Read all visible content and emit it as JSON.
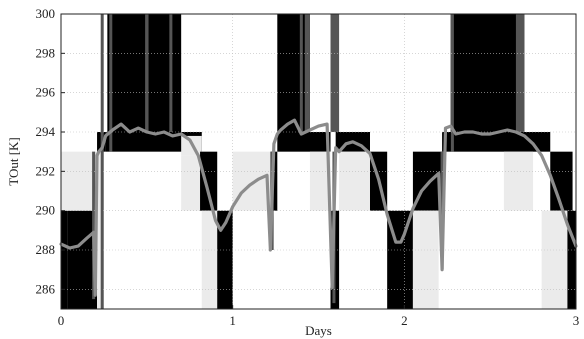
{
  "chart_data": {
    "type": "line",
    "title": "",
    "xlabel": "Days",
    "ylabel": "TOut [K]",
    "xlim": [
      0,
      3
    ],
    "ylim": [
      285,
      300
    ],
    "grid": true,
    "x_ticks": [
      0,
      1,
      2,
      3
    ],
    "x_tick_labels": [
      "0",
      "1",
      "2",
      "3"
    ],
    "y_ticks": [
      286,
      288,
      290,
      292,
      294,
      296,
      298,
      300
    ],
    "y_tick_labels": [
      "286",
      "288",
      "290",
      "292",
      "294",
      "296",
      "298",
      "300"
    ],
    "band_colors": {
      "black": "#000000",
      "dark": "#555555",
      "light": "#ebebeb",
      "white": "#ffffff"
    },
    "line_color": "#8c8c8c",
    "bands": [
      {
        "x0": 0.0,
        "x1": 0.04,
        "y0": 285,
        "y1": 290,
        "color": "black"
      },
      {
        "x0": 0.04,
        "x1": 0.21,
        "y0": 285,
        "y1": 290,
        "color": "black"
      },
      {
        "x0": 0.0,
        "x1": 0.21,
        "y0": 290,
        "y1": 293,
        "color": "light"
      },
      {
        "x0": 0.21,
        "x1": 0.25,
        "y0": 285,
        "y1": 293,
        "color": "light"
      },
      {
        "x0": 0.21,
        "x1": 0.26,
        "y0": 293,
        "y1": 294,
        "color": "black"
      },
      {
        "x0": 0.26,
        "x1": 0.82,
        "y0": 293,
        "y1": 294,
        "color": "black"
      },
      {
        "x0": 0.27,
        "x1": 0.7,
        "y0": 294,
        "y1": 300,
        "color": "black"
      },
      {
        "x0": 0.49,
        "x1": 0.51,
        "y0": 294,
        "y1": 300,
        "color": "dark"
      },
      {
        "x0": 0.7,
        "x1": 0.82,
        "y0": 292.8,
        "y1": 293.8,
        "color": "light"
      },
      {
        "x0": 0.7,
        "x1": 0.81,
        "y0": 290,
        "y1": 292.8,
        "color": "light"
      },
      {
        "x0": 0.81,
        "x1": 0.91,
        "y0": 290,
        "y1": 293,
        "color": "black"
      },
      {
        "x0": 0.82,
        "x1": 0.91,
        "y0": 285,
        "y1": 290,
        "color": "light"
      },
      {
        "x0": 0.91,
        "x1": 1.0,
        "y0": 285,
        "y1": 290,
        "color": "black"
      },
      {
        "x0": 1.0,
        "x1": 1.22,
        "y0": 290,
        "y1": 293,
        "color": "light"
      },
      {
        "x0": 1.22,
        "x1": 1.26,
        "y0": 290,
        "y1": 293,
        "color": "black"
      },
      {
        "x0": 1.26,
        "x1": 1.57,
        "y0": 293,
        "y1": 294,
        "color": "black"
      },
      {
        "x0": 1.26,
        "x1": 1.45,
        "y0": 294,
        "y1": 300,
        "color": "black"
      },
      {
        "x0": 1.42,
        "x1": 1.45,
        "y0": 294,
        "y1": 300,
        "color": "dark"
      },
      {
        "x0": 1.57,
        "x1": 1.62,
        "y0": 294,
        "y1": 300,
        "color": "dark"
      },
      {
        "x0": 1.45,
        "x1": 1.57,
        "y0": 290,
        "y1": 293,
        "color": "light"
      },
      {
        "x0": 1.57,
        "x1": 1.62,
        "y0": 285,
        "y1": 290,
        "color": "black"
      },
      {
        "x0": 1.6,
        "x1": 1.8,
        "y0": 293,
        "y1": 294,
        "color": "black"
      },
      {
        "x0": 1.62,
        "x1": 1.8,
        "y0": 290,
        "y1": 293,
        "color": "light"
      },
      {
        "x0": 1.8,
        "x1": 1.9,
        "y0": 290,
        "y1": 293,
        "color": "black"
      },
      {
        "x0": 1.9,
        "x1": 2.05,
        "y0": 285,
        "y1": 290,
        "color": "black"
      },
      {
        "x0": 2.05,
        "x1": 2.22,
        "y0": 290,
        "y1": 293,
        "color": "black"
      },
      {
        "x0": 2.05,
        "x1": 2.2,
        "y0": 285,
        "y1": 290,
        "color": "light"
      },
      {
        "x0": 2.22,
        "x1": 2.85,
        "y0": 293,
        "y1": 294,
        "color": "black"
      },
      {
        "x0": 2.27,
        "x1": 2.7,
        "y0": 294,
        "y1": 300,
        "color": "black"
      },
      {
        "x0": 2.65,
        "x1": 2.7,
        "y0": 294,
        "y1": 300,
        "color": "dark"
      },
      {
        "x0": 2.58,
        "x1": 2.75,
        "y0": 290,
        "y1": 293,
        "color": "light"
      },
      {
        "x0": 2.85,
        "x1": 2.98,
        "y0": 290,
        "y1": 293,
        "color": "black"
      },
      {
        "x0": 2.8,
        "x1": 2.95,
        "y0": 285,
        "y1": 290,
        "color": "light"
      },
      {
        "x0": 2.95,
        "x1": 3.0,
        "y0": 285,
        "y1": 290,
        "color": "black"
      }
    ],
    "spikes": [
      {
        "x": 0.19,
        "y0": 285.5,
        "y1": 293,
        "color": "dark"
      },
      {
        "x": 0.24,
        "y0": 285,
        "y1": 300,
        "color": "dark"
      },
      {
        "x": 0.29,
        "y0": 293,
        "y1": 300,
        "color": "dark"
      },
      {
        "x": 0.64,
        "y0": 294,
        "y1": 300,
        "color": "dark"
      },
      {
        "x": 1.23,
        "y0": 288,
        "y1": 293,
        "color": "dark"
      },
      {
        "x": 1.4,
        "y0": 294,
        "y1": 300,
        "color": "dark"
      },
      {
        "x": 1.59,
        "y0": 285.3,
        "y1": 293,
        "color": "dark"
      },
      {
        "x": 2.22,
        "y0": 287,
        "y1": 293,
        "color": "dark"
      },
      {
        "x": 2.28,
        "y0": 293,
        "y1": 300,
        "color": "dark"
      }
    ],
    "series": [
      {
        "x": [
          0.0,
          0.05,
          0.1,
          0.15,
          0.19,
          0.2,
          0.21,
          0.22,
          0.24,
          0.26,
          0.3,
          0.35,
          0.4,
          0.45,
          0.5,
          0.55,
          0.6,
          0.65,
          0.7,
          0.75,
          0.8,
          0.85,
          0.9,
          0.93,
          0.96,
          1.0,
          1.05,
          1.1,
          1.15,
          1.2,
          1.22,
          1.24,
          1.26,
          1.28,
          1.32,
          1.36,
          1.4,
          1.45,
          1.5,
          1.55,
          1.58,
          1.6,
          1.62,
          1.66,
          1.7,
          1.75,
          1.8,
          1.85,
          1.9,
          1.95,
          1.98,
          2.0,
          2.05,
          2.1,
          2.15,
          2.2,
          2.22,
          2.24,
          2.27,
          2.3,
          2.35,
          2.4,
          2.45,
          2.5,
          2.55,
          2.6,
          2.65,
          2.7,
          2.75,
          2.8,
          2.85,
          2.9,
          2.95,
          3.0
        ],
        "y": [
          288.3,
          288.1,
          288.2,
          288.6,
          288.9,
          285.7,
          292.8,
          293.0,
          293.2,
          293.8,
          294.1,
          294.4,
          294.0,
          294.2,
          294.0,
          293.9,
          294.0,
          293.8,
          293.9,
          293.6,
          292.8,
          291.2,
          289.5,
          289.0,
          289.4,
          290.2,
          290.9,
          291.3,
          291.6,
          291.8,
          288.0,
          293.4,
          293.9,
          294.1,
          294.4,
          294.6,
          293.9,
          294.1,
          294.3,
          294.4,
          286.1,
          293.2,
          293.0,
          293.4,
          293.5,
          293.3,
          292.9,
          291.6,
          289.8,
          288.4,
          288.4,
          288.8,
          290.1,
          291.0,
          291.5,
          291.9,
          287.0,
          294.2,
          294.3,
          293.9,
          294.0,
          294.0,
          293.9,
          293.9,
          294.0,
          294.1,
          294.0,
          293.8,
          293.4,
          292.8,
          291.8,
          290.6,
          289.3,
          288.2
        ]
      }
    ]
  }
}
